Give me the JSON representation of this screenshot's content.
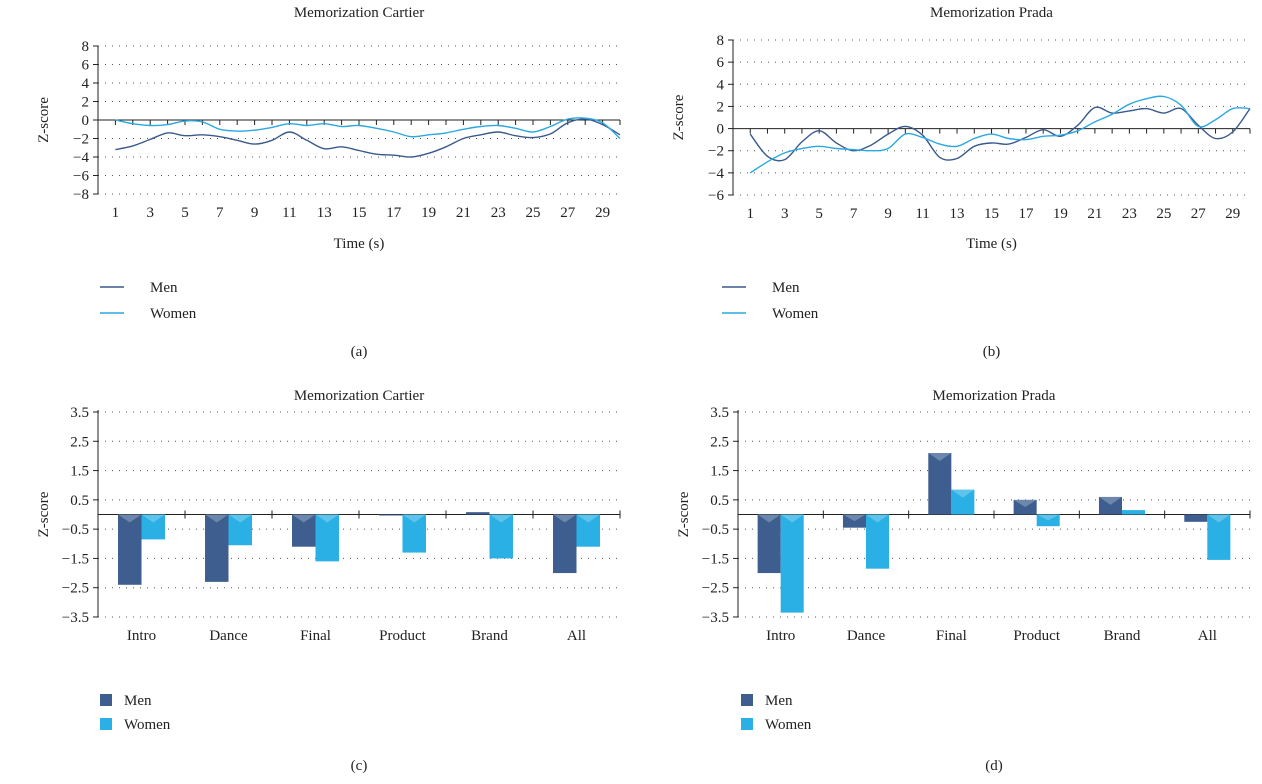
{
  "colors": {
    "men": "#3a5a8c",
    "women": "#2aa8e0",
    "men_bar": "#3d5e8f",
    "women_bar": "#2ab0e4"
  },
  "chart_data": [
    {
      "panel": "(a)",
      "type": "line",
      "title": "Memorization Cartier",
      "xlabel": "Time (s)",
      "ylabel": "Z-score",
      "ylim": [
        -8,
        8
      ],
      "yticks": [
        -8,
        -6,
        -4,
        -2,
        0,
        2,
        4,
        6,
        8
      ],
      "xlim": [
        0,
        30
      ],
      "xticks": [
        1,
        3,
        5,
        7,
        9,
        11,
        13,
        15,
        17,
        19,
        21,
        23,
        25,
        27,
        29
      ],
      "grid": true,
      "legend": "bottom-left",
      "series": [
        {
          "name": "Men",
          "color": "#3a5a8c",
          "x": [
            1,
            2,
            3,
            4,
            5,
            6,
            7,
            8,
            9,
            10,
            11,
            12,
            13,
            14,
            15,
            16,
            17,
            18,
            19,
            20,
            21,
            22,
            23,
            24,
            25,
            26,
            27,
            28,
            29,
            30
          ],
          "y": [
            -3.2,
            -2.8,
            -2.1,
            -1.4,
            -1.7,
            -1.6,
            -1.8,
            -2.2,
            -2.6,
            -2.2,
            -1.3,
            -2.2,
            -3.1,
            -2.9,
            -3.3,
            -3.7,
            -3.8,
            -4.0,
            -3.6,
            -2.9,
            -2.0,
            -1.6,
            -1.3,
            -1.7,
            -1.9,
            -1.5,
            -0.3,
            0.1,
            -0.5,
            -1.6
          ]
        },
        {
          "name": "Women",
          "color": "#2aa8e0",
          "x": [
            1,
            2,
            3,
            4,
            5,
            6,
            7,
            8,
            9,
            10,
            11,
            12,
            13,
            14,
            15,
            16,
            17,
            18,
            19,
            20,
            21,
            22,
            23,
            24,
            25,
            26,
            27,
            28,
            29,
            30
          ],
          "y": [
            0.0,
            -0.4,
            -0.6,
            -0.5,
            -0.1,
            -0.2,
            -1.0,
            -1.2,
            -1.1,
            -0.8,
            -0.4,
            -0.6,
            -0.4,
            -0.7,
            -0.6,
            -0.9,
            -1.3,
            -1.8,
            -1.6,
            -1.4,
            -1.0,
            -0.7,
            -0.6,
            -0.9,
            -1.3,
            -0.7,
            0.1,
            0.2,
            -0.3,
            -2.0
          ]
        }
      ]
    },
    {
      "panel": "(b)",
      "type": "line",
      "title": "Memorization Prada",
      "xlabel": "Time (s)",
      "ylabel": "Z-score",
      "ylim": [
        -6,
        8
      ],
      "yticks": [
        -6,
        -4,
        -2,
        0,
        2,
        4,
        6,
        8
      ],
      "xlim": [
        0,
        30
      ],
      "xticks": [
        1,
        3,
        5,
        7,
        9,
        11,
        13,
        15,
        17,
        19,
        21,
        23,
        25,
        27,
        29
      ],
      "grid": true,
      "legend": "bottom-left",
      "series": [
        {
          "name": "Men",
          "color": "#3a5a8c",
          "x": [
            1,
            2,
            3,
            4,
            5,
            6,
            7,
            8,
            9,
            10,
            11,
            12,
            13,
            14,
            15,
            16,
            17,
            18,
            19,
            20,
            21,
            22,
            23,
            24,
            25,
            26,
            27,
            28,
            29,
            30
          ],
          "y": [
            -0.5,
            -2.5,
            -2.8,
            -1.2,
            -0.2,
            -1.3,
            -2.0,
            -1.5,
            -0.5,
            0.2,
            -0.6,
            -2.6,
            -2.7,
            -1.6,
            -1.3,
            -1.4,
            -0.8,
            -0.1,
            -0.7,
            0.3,
            1.9,
            1.4,
            1.6,
            1.8,
            1.4,
            1.8,
            0.3,
            -0.9,
            -0.3,
            1.8
          ]
        },
        {
          "name": "Women",
          "color": "#2aa8e0",
          "x": [
            1,
            2,
            3,
            4,
            5,
            6,
            7,
            8,
            9,
            10,
            11,
            12,
            13,
            14,
            15,
            16,
            17,
            18,
            19,
            20,
            21,
            22,
            23,
            24,
            25,
            26,
            27,
            28,
            29,
            30
          ],
          "y": [
            -4.0,
            -3.0,
            -2.2,
            -1.8,
            -1.6,
            -1.8,
            -1.9,
            -2.0,
            -1.8,
            -0.5,
            -0.8,
            -1.4,
            -1.6,
            -0.9,
            -0.5,
            -0.9,
            -1.0,
            -0.7,
            -0.6,
            -0.2,
            0.6,
            1.3,
            2.2,
            2.7,
            2.9,
            2.1,
            0.2,
            0.8,
            1.8,
            1.8
          ]
        }
      ]
    },
    {
      "panel": "(c)",
      "type": "bar",
      "title": "Memorization Cartier",
      "xlabel": "",
      "ylabel": "Z-score",
      "ylim": [
        -3.5,
        3.5
      ],
      "yticks": [
        3.5,
        2.5,
        1.5,
        0.5,
        -0.5,
        -1.5,
        -2.5,
        -3.5
      ],
      "grid": true,
      "legend": "bottom-left",
      "categories": [
        "Intro",
        "Dance",
        "Final",
        "Product",
        "Brand",
        "All"
      ],
      "series": [
        {
          "name": "Men",
          "color": "#3d5e8f",
          "values": [
            -2.4,
            -2.3,
            -1.1,
            0.0,
            0.08,
            -2.0
          ]
        },
        {
          "name": "Women",
          "color": "#2ab0e4",
          "values": [
            -0.85,
            -1.05,
            -1.6,
            -1.3,
            -1.5,
            -1.1
          ]
        }
      ]
    },
    {
      "panel": "(d)",
      "type": "bar",
      "title": "Memorization Prada",
      "xlabel": "",
      "ylabel": "Z-score",
      "ylim": [
        -3.5,
        3.5
      ],
      "yticks": [
        3.5,
        2.5,
        1.5,
        0.5,
        -0.5,
        -1.5,
        -2.5,
        -3.5
      ],
      "grid": true,
      "legend": "bottom-left",
      "categories": [
        "Intro",
        "Dance",
        "Final",
        "Product",
        "Brand",
        "All"
      ],
      "series": [
        {
          "name": "Men",
          "color": "#3d5e8f",
          "values": [
            -2.0,
            -0.45,
            2.1,
            0.5,
            0.6,
            -0.25
          ]
        },
        {
          "name": "Women",
          "color": "#2ab0e4",
          "values": [
            -3.35,
            -1.85,
            0.85,
            -0.4,
            0.15,
            -1.55
          ]
        }
      ]
    }
  ]
}
